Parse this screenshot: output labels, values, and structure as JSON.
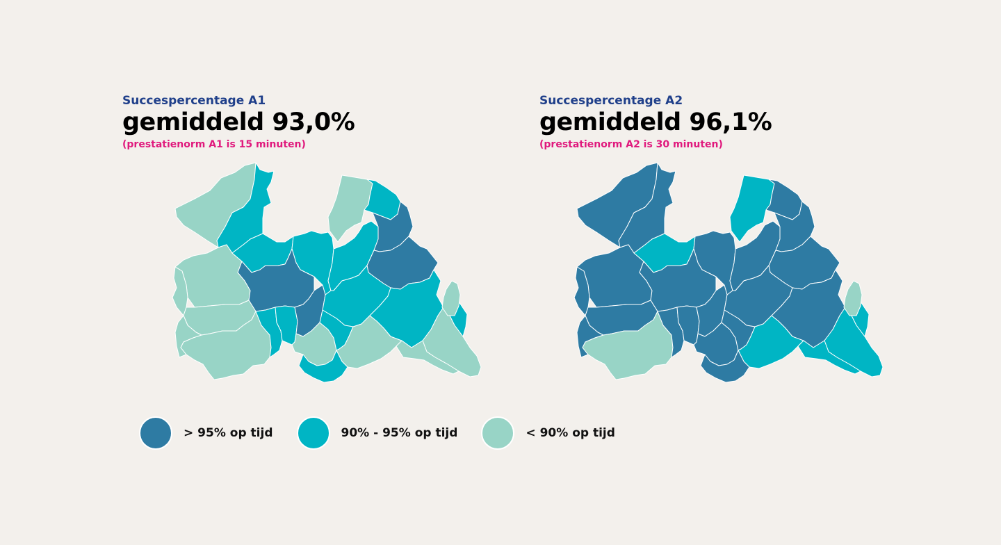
{
  "colors": {
    "high": "#2e7ba3",
    "mid": "#00b5c4",
    "low": "#98d4c6",
    "subtitle": "#1f3f8a",
    "norm": "#e0197d"
  },
  "panels": [
    {
      "subtitle": "Succespercentage A1",
      "headline": "gemiddeld 93,0%",
      "norm": "(prestatienorm A1 is 15 minuten)"
    },
    {
      "subtitle": "Succespercentage A2",
      "headline": "gemiddeld 96,1%",
      "norm": "(prestatienorm A2 is 30 minuten)"
    }
  ],
  "legend": [
    {
      "key": "high",
      "label": "> 95% op tijd"
    },
    {
      "key": "mid",
      "label": "90% - 95% op tijd"
    },
    {
      "key": "low",
      "label": "< 90% op tijd"
    }
  ],
  "maps": {
    "A1": {
      "r1": "low",
      "r2": "mid",
      "r3": "low",
      "r4": "mid",
      "r5": "low",
      "r6": "mid",
      "r7": "mid",
      "r8": "high",
      "r9": "mid",
      "r10": "high",
      "r11": "high",
      "r12": "low",
      "r13": "low",
      "r14": "low",
      "r15": "low",
      "r16": "mid",
      "r17": "mid",
      "r18": "high",
      "r19": "low",
      "r20": "mid",
      "r21": "mid",
      "r22": "low",
      "r23": "mid",
      "r24": "low",
      "r25": "mid",
      "r26": "low",
      "r27": "mid",
      "r28": "low"
    },
    "A2": {
      "r1": "high",
      "r2": "high",
      "r3": "mid",
      "r4": "high",
      "r5": "high",
      "r6": "mid",
      "r7": "high",
      "r8": "high",
      "r9": "high",
      "r10": "high",
      "r11": "high",
      "r12": "high",
      "r13": "high",
      "r14": "high",
      "r15": "low",
      "r16": "high",
      "r17": "high",
      "r18": "high",
      "r19": "high",
      "r20": "high",
      "r21": "high",
      "r22": "mid",
      "r23": "high",
      "r24": "mid",
      "r25": "mid",
      "r26": "mid",
      "r27": "high",
      "r28": "low"
    }
  }
}
